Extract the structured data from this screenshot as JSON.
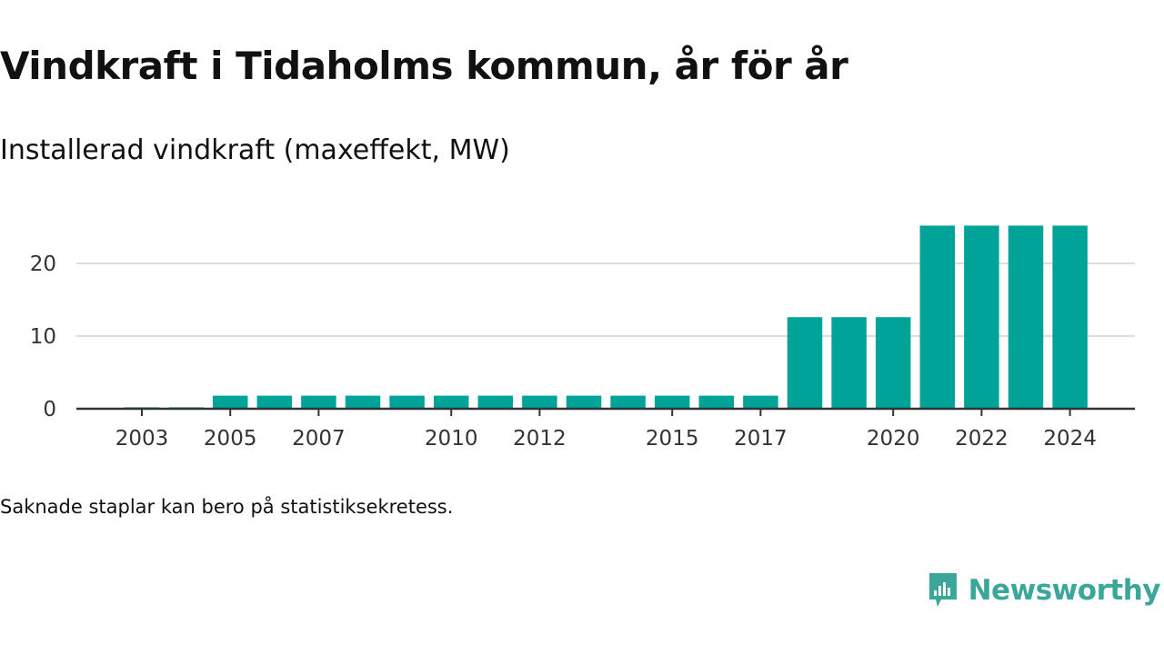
{
  "title": "Vindkraft i Tidaholms kommun, år för år",
  "subtitle": "Installerad vindkraft (maxeffekt, MW)",
  "note": "Saknade staplar kan bero på statistiksekretess.",
  "brand": {
    "name": "Newsworthy",
    "icon": "newsworthy-logo-icon",
    "color": "#3aa79a"
  },
  "chart_data": {
    "type": "bar",
    "title": "Vindkraft i Tidaholms kommun, år för år",
    "subtitle": "Installerad vindkraft (maxeffekt, MW)",
    "xlabel": "",
    "ylabel": "",
    "categories": [
      "2003",
      "2004",
      "2005",
      "2006",
      "2007",
      "2008",
      "2009",
      "2010",
      "2011",
      "2012",
      "2013",
      "2014",
      "2015",
      "2016",
      "2017",
      "2018",
      "2019",
      "2020",
      "2021",
      "2022",
      "2023",
      "2024"
    ],
    "values": [
      0.2,
      0.2,
      1.8,
      1.8,
      1.8,
      1.8,
      1.8,
      1.8,
      1.8,
      1.8,
      1.8,
      1.8,
      1.8,
      1.8,
      1.8,
      12.6,
      12.6,
      12.6,
      25.2,
      25.2,
      25.2,
      25.2
    ],
    "x_tick_labels": [
      "2003",
      "2005",
      "2007",
      "2010",
      "2012",
      "2015",
      "2017",
      "2020",
      "2022",
      "2024"
    ],
    "y_ticks": [
      0,
      10,
      20
    ],
    "ylim": [
      0,
      27.5
    ],
    "grid": true,
    "bar_color": "#00a398",
    "grid_color": "#dddddd",
    "axis_color": "#333333"
  }
}
